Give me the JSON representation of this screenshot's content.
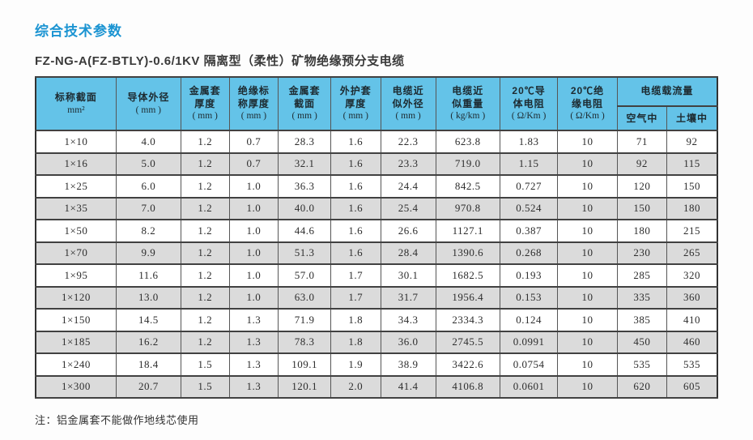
{
  "page": {
    "title": "综合技术参数",
    "subtitle": "FZ-NG-A(FZ-BTLY)-0.6/1KV 隔离型（柔性）矿物绝缘预分支电缆",
    "note": "注：铝金属套不能做作地线芯使用"
  },
  "colors": {
    "title_blue": "#1b94d2",
    "header_bg": "#64c3e8",
    "row_alt": "#dbdbdb",
    "border_dark": "#414141"
  },
  "table": {
    "columns": [
      {
        "lines": [
          "标称截面"
        ],
        "unit": "mm²"
      },
      {
        "lines": [
          "导体外径"
        ],
        "unit": "( mm )"
      },
      {
        "lines": [
          "金属套",
          "厚度"
        ],
        "unit": "( mm )"
      },
      {
        "lines": [
          "绝缘标",
          "称厚度"
        ],
        "unit": "( mm )"
      },
      {
        "lines": [
          "金属套",
          "截面"
        ],
        "unit": "( mm )"
      },
      {
        "lines": [
          "外护套",
          "厚度"
        ],
        "unit": "( mm )"
      },
      {
        "lines": [
          "电缆近",
          "似外径"
        ],
        "unit": "( mm )"
      },
      {
        "lines": [
          "电缆近",
          "似重量"
        ],
        "unit": "( kg/km )"
      },
      {
        "lines": [
          "20℃导",
          "体电阻"
        ],
        "unit": "( Ω/Km )"
      },
      {
        "lines": [
          "20℃绝",
          "缘电阻"
        ],
        "unit": "( Ω/Km )"
      }
    ],
    "ampacity": {
      "label": "电缆载流量",
      "sub": [
        "空气中",
        "土壤中"
      ]
    },
    "rows": [
      [
        "1×10",
        "4.0",
        "1.2",
        "0.7",
        "28.3",
        "1.6",
        "22.3",
        "623.8",
        "1.83",
        "10",
        "71",
        "92"
      ],
      [
        "1×16",
        "5.0",
        "1.2",
        "0.7",
        "32.1",
        "1.6",
        "23.3",
        "719.0",
        "1.15",
        "10",
        "92",
        "115"
      ],
      [
        "1×25",
        "6.0",
        "1.2",
        "1.0",
        "36.3",
        "1.6",
        "24.4",
        "842.5",
        "0.727",
        "10",
        "120",
        "150"
      ],
      [
        "1×35",
        "7.0",
        "1.2",
        "1.0",
        "40.0",
        "1.6",
        "25.4",
        "970.8",
        "0.524",
        "10",
        "150",
        "180"
      ],
      [
        "1×50",
        "8.2",
        "1.2",
        "1.0",
        "44.6",
        "1.6",
        "26.6",
        "1127.1",
        "0.387",
        "10",
        "180",
        "215"
      ],
      [
        "1×70",
        "9.9",
        "1.2",
        "1.0",
        "51.3",
        "1.6",
        "28.4",
        "1390.6",
        "0.268",
        "10",
        "230",
        "265"
      ],
      [
        "1×95",
        "11.6",
        "1.2",
        "1.0",
        "57.0",
        "1.7",
        "30.1",
        "1682.5",
        "0.193",
        "10",
        "285",
        "320"
      ],
      [
        "1×120",
        "13.0",
        "1.2",
        "1.0",
        "63.0",
        "1.7",
        "31.7",
        "1956.4",
        "0.153",
        "10",
        "335",
        "360"
      ],
      [
        "1×150",
        "14.5",
        "1.2",
        "1.3",
        "71.9",
        "1.8",
        "34.3",
        "2334.3",
        "0.124",
        "10",
        "385",
        "410"
      ],
      [
        "1×185",
        "16.2",
        "1.2",
        "1.3",
        "78.3",
        "1.8",
        "36.0",
        "2745.5",
        "0.0991",
        "10",
        "450",
        "460"
      ],
      [
        "1×240",
        "18.4",
        "1.5",
        "1.3",
        "109.1",
        "1.9",
        "38.9",
        "3422.6",
        "0.0754",
        "10",
        "535",
        "535"
      ],
      [
        "1×300",
        "20.7",
        "1.5",
        "1.3",
        "120.1",
        "2.0",
        "41.4",
        "4106.8",
        "0.0601",
        "10",
        "620",
        "605"
      ]
    ]
  }
}
